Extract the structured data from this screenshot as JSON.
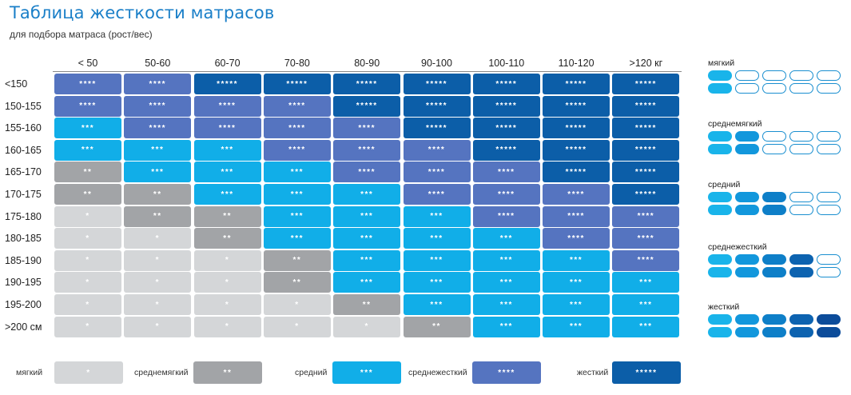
{
  "title": "Таблица жесткости матрасов",
  "subtitle": "для подбора матраса (рост/вес)",
  "colors": {
    "title": "#1a7fc8",
    "levels": [
      "#d4d6d8",
      "#a2a4a7",
      "#11aee8",
      "#5574c0",
      "#0c5ea8"
    ],
    "pill_outline": "#1a8fd0"
  },
  "table": {
    "columns": [
      "< 50",
      "50-60",
      "60-70",
      "70-80",
      "80-90",
      "90-100",
      "100-110",
      "110-120",
      ">120 кг"
    ],
    "rows": [
      {
        "label": "<150",
        "levels": [
          4,
          4,
          5,
          5,
          5,
          5,
          5,
          5,
          5
        ]
      },
      {
        "label": "150-155",
        "levels": [
          4,
          4,
          4,
          4,
          5,
          5,
          5,
          5,
          5
        ]
      },
      {
        "label": "155-160",
        "levels": [
          3,
          4,
          4,
          4,
          4,
          5,
          5,
          5,
          5
        ]
      },
      {
        "label": "160-165",
        "levels": [
          3,
          3,
          3,
          4,
          4,
          4,
          5,
          5,
          5
        ]
      },
      {
        "label": "165-170",
        "levels": [
          2,
          3,
          3,
          3,
          4,
          4,
          4,
          5,
          5
        ]
      },
      {
        "label": "170-175",
        "levels": [
          2,
          2,
          3,
          3,
          3,
          4,
          4,
          4,
          5
        ]
      },
      {
        "label": "175-180",
        "levels": [
          1,
          2,
          2,
          3,
          3,
          3,
          4,
          4,
          4
        ]
      },
      {
        "label": "180-185",
        "levels": [
          1,
          1,
          2,
          3,
          3,
          3,
          3,
          4,
          4
        ]
      },
      {
        "label": "185-190",
        "levels": [
          1,
          1,
          1,
          2,
          3,
          3,
          3,
          3,
          4
        ]
      },
      {
        "label": "190-195",
        "levels": [
          1,
          1,
          1,
          2,
          3,
          3,
          3,
          3,
          3
        ]
      },
      {
        "label": "195-200",
        "levels": [
          1,
          1,
          1,
          1,
          2,
          3,
          3,
          3,
          3
        ]
      },
      {
        "label": ">200 см",
        "levels": [
          1,
          1,
          1,
          1,
          1,
          2,
          3,
          3,
          3
        ]
      }
    ]
  },
  "stars": [
    "*",
    "**",
    "***",
    "****",
    "*****"
  ],
  "side_legend": [
    {
      "label": "мягкий",
      "level": 1
    },
    {
      "label": "среднемягкий",
      "level": 2
    },
    {
      "label": "средний",
      "level": 3
    },
    {
      "label": "среднежесткий",
      "level": 4
    },
    {
      "label": "жесткий",
      "level": 5
    }
  ],
  "side_legend_pill_colors": [
    "#19b4ea",
    "#1297dc",
    "#0e7fc8",
    "#0d63b0",
    "#0c4c9a"
  ],
  "legend": [
    {
      "label": "мягкий",
      "level": 1
    },
    {
      "label": "среднемягкий",
      "level": 2
    },
    {
      "label": "средний",
      "level": 3
    },
    {
      "label": "среднежесткий",
      "level": 4
    },
    {
      "label": "жесткий",
      "level": 5
    }
  ]
}
